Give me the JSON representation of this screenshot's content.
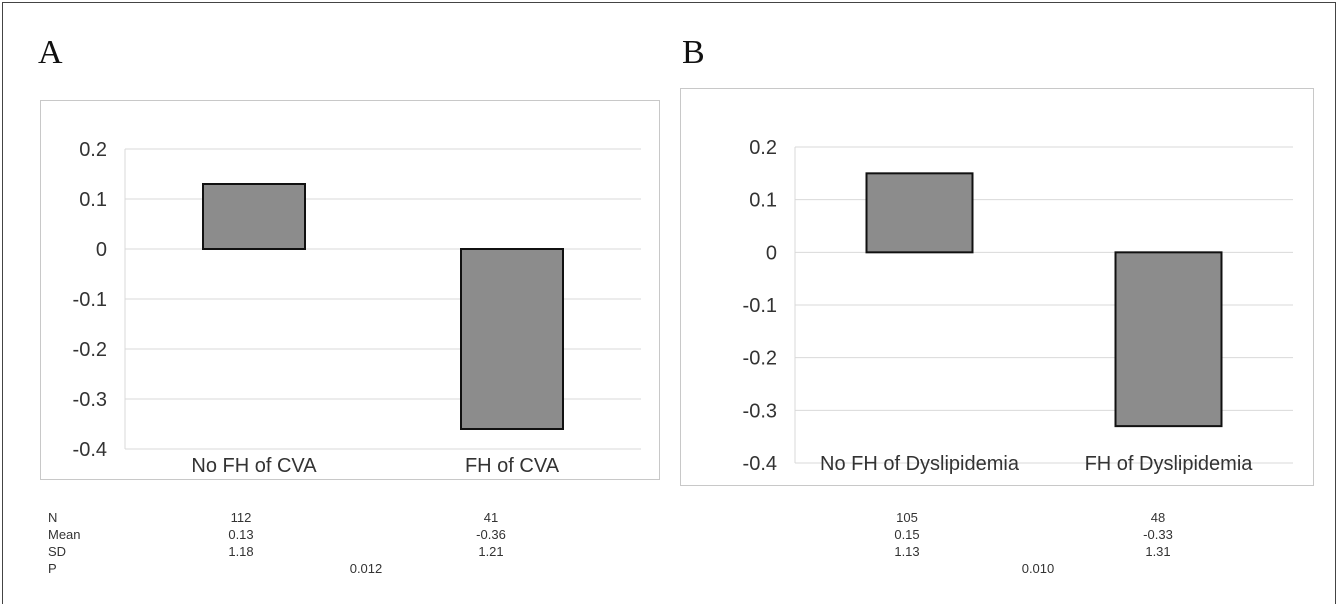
{
  "panels": [
    {
      "letter": "A"
    },
    {
      "letter": "B"
    }
  ],
  "chart_data": [
    {
      "type": "bar",
      "categories": [
        "No FH of CVA",
        "FH of CVA"
      ],
      "values": [
        0.13,
        -0.36
      ],
      "ylim": [
        -0.4,
        0.2
      ],
      "yticks": [
        "0.2",
        "0.1",
        "0",
        "-0.1",
        "-0.2",
        "-0.3",
        "-0.4"
      ],
      "grid": true,
      "bar_color": "#8c8c8c"
    },
    {
      "type": "bar",
      "categories": [
        "No FH of Dyslipidemia",
        "FH of Dyslipidemia"
      ],
      "values": [
        0.15,
        -0.33
      ],
      "ylim": [
        -0.4,
        0.2
      ],
      "yticks": [
        "0.2",
        "0.1",
        "0",
        "-0.1",
        "-0.2",
        "-0.3",
        "-0.4"
      ],
      "grid": true,
      "bar_color": "#8c8c8c"
    }
  ],
  "stats_table": {
    "row_labels": [
      "N",
      "Mean",
      "SD",
      "P"
    ],
    "panel_a": {
      "n": [
        "112",
        "41"
      ],
      "mean": [
        "0.13",
        "-0.36"
      ],
      "sd": [
        "1.18",
        "1.21"
      ],
      "p": "0.012"
    },
    "panel_b": {
      "n": [
        "105",
        "48"
      ],
      "mean": [
        "0.15",
        "-0.33"
      ],
      "sd": [
        "1.13",
        "1.31"
      ],
      "p": "0.010"
    }
  }
}
